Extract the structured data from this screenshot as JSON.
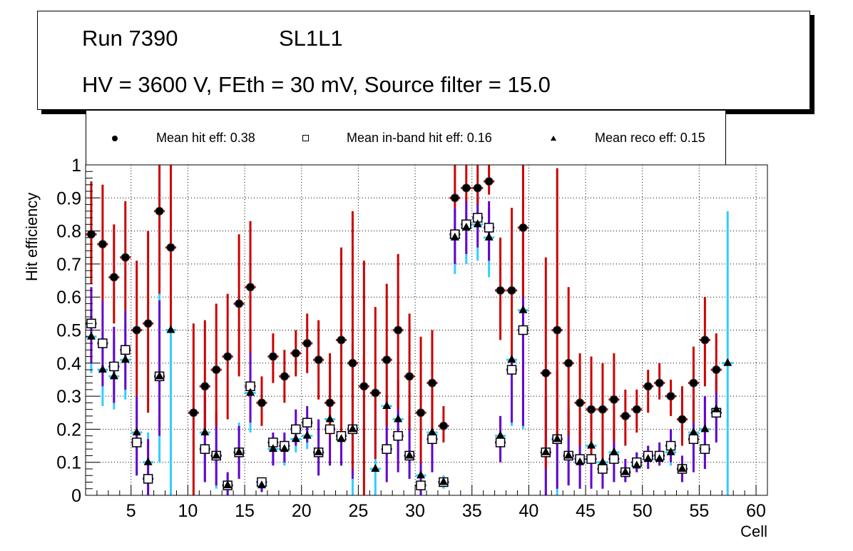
{
  "title": {
    "run": "Run 7390",
    "layer": "SL1L1",
    "conditions": "HV = 3600 V, FEth = 30 mV, Source filter = 15.0"
  },
  "legend": {
    "hit": "Mean hit  eff: 0.38",
    "inband": "Mean in-band hit eff: 0.16",
    "reco": "Mean reco eff: 0.15"
  },
  "colors": {
    "hit_error": "#cc0000",
    "inband_error": "#6600cc",
    "reco_error": "#33ccff",
    "marker": "#000000",
    "grid": "#000000"
  },
  "chart_data": {
    "type": "scatter",
    "title": "Run 7390 SL1L1 — HV = 3600 V, FEth = 30 mV, Source filter = 15.0",
    "xlabel": "Cell",
    "ylabel": "Hit efficiency",
    "xlim": [
      1,
      61
    ],
    "ylim": [
      0,
      1
    ],
    "x_ticks": [
      5,
      10,
      15,
      20,
      25,
      30,
      35,
      40,
      45,
      50,
      55,
      60
    ],
    "y_ticks": [
      "0",
      "0.1",
      "0.2",
      "0.3",
      "0.4",
      "0.5",
      "0.6",
      "0.7",
      "0.8",
      "0.9",
      "1"
    ],
    "grid": true,
    "legend_position": "top",
    "series": [
      {
        "name": "Mean hit  eff: 0.38",
        "marker": "circle",
        "points": [
          {
            "cell": 1,
            "y": 0.79,
            "lo": 0.64,
            "hi": 0.95
          },
          {
            "cell": 2,
            "y": 0.76,
            "lo": 0.59,
            "hi": 0.94
          },
          {
            "cell": 3,
            "y": 0.66,
            "lo": 0.52,
            "hi": 0.82
          },
          {
            "cell": 4,
            "y": 0.72,
            "lo": 0.56,
            "hi": 0.89
          },
          {
            "cell": 5,
            "y": 0.5,
            "lo": 0.3,
            "hi": 0.71
          },
          {
            "cell": 6,
            "y": 0.52,
            "lo": 0.25,
            "hi": 0.8
          },
          {
            "cell": 7,
            "y": 0.86,
            "lo": 0.61,
            "hi": 1.0
          },
          {
            "cell": 8,
            "y": 0.75,
            "lo": 0.5,
            "hi": 1.0
          },
          {
            "cell": 10,
            "y": 0.25,
            "lo": 0.0,
            "hi": 0.52
          },
          {
            "cell": 11,
            "y": 0.33,
            "lo": 0.18,
            "hi": 0.53
          },
          {
            "cell": 12,
            "y": 0.38,
            "lo": 0.21,
            "hi": 0.58
          },
          {
            "cell": 13,
            "y": 0.42,
            "lo": 0.23,
            "hi": 0.61
          },
          {
            "cell": 14,
            "y": 0.58,
            "lo": 0.36,
            "hi": 0.79
          },
          {
            "cell": 15,
            "y": 0.63,
            "lo": 0.43,
            "hi": 0.83
          },
          {
            "cell": 16,
            "y": 0.28,
            "lo": 0.21,
            "hi": 0.36
          },
          {
            "cell": 17,
            "y": 0.42,
            "lo": 0.34,
            "hi": 0.49
          },
          {
            "cell": 18,
            "y": 0.36,
            "lo": 0.28,
            "hi": 0.44
          },
          {
            "cell": 19,
            "y": 0.43,
            "lo": 0.36,
            "hi": 0.5
          },
          {
            "cell": 20,
            "y": 0.46,
            "lo": 0.37,
            "hi": 0.55
          },
          {
            "cell": 21,
            "y": 0.41,
            "lo": 0.29,
            "hi": 0.53
          },
          {
            "cell": 22,
            "y": 0.28,
            "lo": 0.18,
            "hi": 0.43
          },
          {
            "cell": 23,
            "y": 0.47,
            "lo": 0.17,
            "hi": 0.75
          },
          {
            "cell": 24,
            "y": 0.4,
            "lo": 0.08,
            "hi": 0.86
          },
          {
            "cell": 25,
            "y": 0.33,
            "lo": 0.0,
            "hi": 0.71
          },
          {
            "cell": 26,
            "y": 0.31,
            "lo": 0.11,
            "hi": 0.57
          },
          {
            "cell": 27,
            "y": 0.41,
            "lo": 0.21,
            "hi": 0.64
          },
          {
            "cell": 28,
            "y": 0.5,
            "lo": 0.26,
            "hi": 0.73
          },
          {
            "cell": 29,
            "y": 0.36,
            "lo": 0.2,
            "hi": 0.55
          },
          {
            "cell": 30,
            "y": 0.25,
            "lo": 0.1,
            "hi": 0.48
          },
          {
            "cell": 31,
            "y": 0.34,
            "lo": 0.2,
            "hi": 0.5
          },
          {
            "cell": 32,
            "y": 0.21,
            "lo": 0.16,
            "hi": 0.27
          },
          {
            "cell": 33,
            "y": 0.9,
            "lo": 0.87,
            "hi": 1.0
          },
          {
            "cell": 34,
            "y": 0.93,
            "lo": 0.89,
            "hi": 1.0
          },
          {
            "cell": 35,
            "y": 0.93,
            "lo": 0.88,
            "hi": 1.0
          },
          {
            "cell": 36,
            "y": 0.95,
            "lo": 0.91,
            "hi": 1.0
          },
          {
            "cell": 37,
            "y": 0.62,
            "lo": 0.47,
            "hi": 0.78
          },
          {
            "cell": 38,
            "y": 0.62,
            "lo": 0.42,
            "hi": 0.87
          },
          {
            "cell": 39,
            "y": 0.81,
            "lo": 0.6,
            "hi": 1.0
          },
          {
            "cell": 41,
            "y": 0.37,
            "lo": 0.08,
            "hi": 0.72
          },
          {
            "cell": 42,
            "y": 0.5,
            "lo": 0.16,
            "hi": 0.99
          },
          {
            "cell": 43,
            "y": 0.4,
            "lo": 0.18,
            "hi": 0.63
          },
          {
            "cell": 44,
            "y": 0.28,
            "lo": 0.15,
            "hi": 0.43
          },
          {
            "cell": 45,
            "y": 0.26,
            "lo": 0.1,
            "hi": 0.42
          },
          {
            "cell": 46,
            "y": 0.26,
            "lo": 0.11,
            "hi": 0.4
          },
          {
            "cell": 47,
            "y": 0.29,
            "lo": 0.16,
            "hi": 0.43
          },
          {
            "cell": 48,
            "y": 0.24,
            "lo": 0.15,
            "hi": 0.32
          },
          {
            "cell": 49,
            "y": 0.26,
            "lo": 0.19,
            "hi": 0.32
          },
          {
            "cell": 50,
            "y": 0.33,
            "lo": 0.25,
            "hi": 0.38
          },
          {
            "cell": 51,
            "y": 0.34,
            "lo": 0.29,
            "hi": 0.4
          },
          {
            "cell": 52,
            "y": 0.3,
            "lo": 0.24,
            "hi": 0.35
          },
          {
            "cell": 53,
            "y": 0.23,
            "lo": 0.15,
            "hi": 0.33
          },
          {
            "cell": 54,
            "y": 0.34,
            "lo": 0.22,
            "hi": 0.45
          },
          {
            "cell": 55,
            "y": 0.47,
            "lo": 0.33,
            "hi": 0.6
          },
          {
            "cell": 56,
            "y": 0.38,
            "lo": 0.31,
            "hi": 0.49
          }
        ]
      },
      {
        "name": "Mean in-band hit eff: 0.16",
        "marker": "open-square",
        "points": [
          {
            "cell": 1,
            "y": 0.52,
            "lo": 0.4,
            "hi": 0.63
          },
          {
            "cell": 2,
            "y": 0.46,
            "lo": 0.33,
            "hi": 0.59
          },
          {
            "cell": 3,
            "y": 0.39,
            "lo": 0.28,
            "hi": 0.51
          },
          {
            "cell": 4,
            "y": 0.44,
            "lo": 0.32,
            "hi": 0.56
          },
          {
            "cell": 5,
            "y": 0.16,
            "lo": 0.06,
            "hi": 0.3
          },
          {
            "cell": 6,
            "y": 0.05,
            "lo": 0.0,
            "hi": 0.17
          },
          {
            "cell": 7,
            "y": 0.36,
            "lo": 0.18,
            "hi": 0.59
          },
          {
            "cell": 11,
            "y": 0.14,
            "lo": 0.04,
            "hi": 0.3
          },
          {
            "cell": 12,
            "y": 0.12,
            "lo": 0.03,
            "hi": 0.25
          },
          {
            "cell": 13,
            "y": 0.03,
            "lo": 0.0,
            "hi": 0.07
          },
          {
            "cell": 14,
            "y": 0.13,
            "lo": 0.05,
            "hi": 0.21
          },
          {
            "cell": 15,
            "y": 0.33,
            "lo": 0.22,
            "hi": 0.45
          },
          {
            "cell": 16,
            "y": 0.04,
            "lo": 0.01,
            "hi": 0.05
          },
          {
            "cell": 17,
            "y": 0.16,
            "lo": 0.09,
            "hi": 0.19
          },
          {
            "cell": 18,
            "y": 0.15,
            "lo": 0.1,
            "hi": 0.19
          },
          {
            "cell": 19,
            "y": 0.2,
            "lo": 0.15,
            "hi": 0.26
          },
          {
            "cell": 20,
            "y": 0.22,
            "lo": 0.16,
            "hi": 0.27
          },
          {
            "cell": 21,
            "y": 0.13,
            "lo": 0.06,
            "hi": 0.23
          },
          {
            "cell": 22,
            "y": 0.2,
            "lo": 0.09,
            "hi": 0.36
          },
          {
            "cell": 23,
            "y": 0.18,
            "lo": 0.09,
            "hi": 0.3
          },
          {
            "cell": 24,
            "y": 0.2,
            "lo": 0.05,
            "hi": 0.46
          },
          {
            "cell": 27,
            "y": 0.14,
            "lo": 0.04,
            "hi": 0.3
          },
          {
            "cell": 28,
            "y": 0.18,
            "lo": 0.07,
            "hi": 0.35
          },
          {
            "cell": 29,
            "y": 0.12,
            "lo": 0.05,
            "hi": 0.24
          },
          {
            "cell": 30,
            "y": 0.03,
            "lo": 0.0,
            "hi": 0.11
          },
          {
            "cell": 31,
            "y": 0.17,
            "lo": 0.07,
            "hi": 0.3
          },
          {
            "cell": 32,
            "y": 0.04,
            "lo": 0.03,
            "hi": 0.05
          },
          {
            "cell": 33,
            "y": 0.79,
            "lo": 0.7,
            "hi": 0.87
          },
          {
            "cell": 34,
            "y": 0.82,
            "lo": 0.73,
            "hi": 0.89
          },
          {
            "cell": 35,
            "y": 0.84,
            "lo": 0.75,
            "hi": 0.93
          },
          {
            "cell": 36,
            "y": 0.81,
            "lo": 0.71,
            "hi": 0.89
          },
          {
            "cell": 37,
            "y": 0.16,
            "lo": 0.1,
            "hi": 0.24
          },
          {
            "cell": 38,
            "y": 0.38,
            "lo": 0.22,
            "hi": 0.57
          },
          {
            "cell": 39,
            "y": 0.5,
            "lo": 0.21,
            "hi": 0.82
          },
          {
            "cell": 41,
            "y": 0.13,
            "lo": 0.0,
            "hi": 0.3
          },
          {
            "cell": 42,
            "y": 0.17,
            "lo": 0.02,
            "hi": 0.38
          },
          {
            "cell": 43,
            "y": 0.12,
            "lo": 0.03,
            "hi": 0.26
          },
          {
            "cell": 44,
            "y": 0.11,
            "lo": 0.02,
            "hi": 0.21
          },
          {
            "cell": 45,
            "y": 0.11,
            "lo": 0.02,
            "hi": 0.24
          },
          {
            "cell": 46,
            "y": 0.08,
            "lo": 0.02,
            "hi": 0.18
          },
          {
            "cell": 47,
            "y": 0.11,
            "lo": 0.04,
            "hi": 0.2
          },
          {
            "cell": 48,
            "y": 0.07,
            "lo": 0.04,
            "hi": 0.11
          },
          {
            "cell": 49,
            "y": 0.1,
            "lo": 0.07,
            "hi": 0.13
          },
          {
            "cell": 50,
            "y": 0.12,
            "lo": 0.08,
            "hi": 0.15
          },
          {
            "cell": 51,
            "y": 0.12,
            "lo": 0.09,
            "hi": 0.16
          },
          {
            "cell": 52,
            "y": 0.15,
            "lo": 0.1,
            "hi": 0.2
          },
          {
            "cell": 53,
            "y": 0.08,
            "lo": 0.04,
            "hi": 0.12
          },
          {
            "cell": 54,
            "y": 0.17,
            "lo": 0.07,
            "hi": 0.29
          },
          {
            "cell": 55,
            "y": 0.14,
            "lo": 0.08,
            "hi": 0.3
          },
          {
            "cell": 56,
            "y": 0.25,
            "lo": 0.16,
            "hi": 0.35
          }
        ]
      },
      {
        "name": "Mean reco eff: 0.15",
        "marker": "triangle",
        "points": [
          {
            "cell": 1,
            "y": 0.48,
            "lo": 0.37,
            "hi": 0.58
          },
          {
            "cell": 2,
            "y": 0.38,
            "lo": 0.27,
            "hi": 0.49
          },
          {
            "cell": 3,
            "y": 0.36,
            "lo": 0.26,
            "hi": 0.47
          },
          {
            "cell": 4,
            "y": 0.41,
            "lo": 0.29,
            "hi": 0.52
          },
          {
            "cell": 5,
            "y": 0.19,
            "lo": 0.06,
            "hi": 0.3
          },
          {
            "cell": 6,
            "y": 0.1,
            "lo": 0.0,
            "hi": 0.19
          },
          {
            "cell": 7,
            "y": 0.36,
            "lo": 0.1,
            "hi": 0.61
          },
          {
            "cell": 8,
            "y": 0.5,
            "lo": 0.0,
            "hi": 1.0
          },
          {
            "cell": 11,
            "y": 0.19,
            "lo": 0.04,
            "hi": 0.33
          },
          {
            "cell": 12,
            "y": 0.12,
            "lo": 0.02,
            "hi": 0.26
          },
          {
            "cell": 13,
            "y": 0.03,
            "lo": 0.0,
            "hi": 0.07
          },
          {
            "cell": 14,
            "y": 0.13,
            "lo": 0.05,
            "hi": 0.22
          },
          {
            "cell": 15,
            "y": 0.31,
            "lo": 0.19,
            "hi": 0.43
          },
          {
            "cell": 16,
            "y": 0.03,
            "lo": 0.01,
            "hi": 0.05
          },
          {
            "cell": 17,
            "y": 0.14,
            "lo": 0.1,
            "hi": 0.18
          },
          {
            "cell": 18,
            "y": 0.14,
            "lo": 0.09,
            "hi": 0.18
          },
          {
            "cell": 19,
            "y": 0.17,
            "lo": 0.13,
            "hi": 0.21
          },
          {
            "cell": 20,
            "y": 0.18,
            "lo": 0.14,
            "hi": 0.23
          },
          {
            "cell": 21,
            "y": 0.13,
            "lo": 0.06,
            "hi": 0.22
          },
          {
            "cell": 22,
            "y": 0.23,
            "lo": 0.12,
            "hi": 0.37
          },
          {
            "cell": 23,
            "y": 0.17,
            "lo": 0.09,
            "hi": 0.28
          },
          {
            "cell": 24,
            "y": 0.2,
            "lo": 0.0,
            "hi": 0.46
          },
          {
            "cell": 26,
            "y": 0.08,
            "lo": 0.0,
            "hi": 0.3
          },
          {
            "cell": 27,
            "y": 0.27,
            "lo": 0.12,
            "hi": 0.44
          },
          {
            "cell": 28,
            "y": 0.23,
            "lo": 0.11,
            "hi": 0.39
          },
          {
            "cell": 29,
            "y": 0.12,
            "lo": 0.05,
            "hi": 0.24
          },
          {
            "cell": 30,
            "y": 0.06,
            "lo": 0.0,
            "hi": 0.13
          },
          {
            "cell": 31,
            "y": 0.19,
            "lo": 0.1,
            "hi": 0.3
          },
          {
            "cell": 32,
            "y": 0.04,
            "lo": 0.02,
            "hi": 0.06
          },
          {
            "cell": 33,
            "y": 0.78,
            "lo": 0.67,
            "hi": 0.87
          },
          {
            "cell": 34,
            "y": 0.81,
            "lo": 0.7,
            "hi": 0.9
          },
          {
            "cell": 35,
            "y": 0.82,
            "lo": 0.71,
            "hi": 0.91
          },
          {
            "cell": 36,
            "y": 0.78,
            "lo": 0.66,
            "hi": 0.87
          },
          {
            "cell": 37,
            "y": 0.18,
            "lo": 0.11,
            "hi": 0.24
          },
          {
            "cell": 38,
            "y": 0.41,
            "lo": 0.21,
            "hi": 0.61
          },
          {
            "cell": 39,
            "y": 0.56,
            "lo": 0.2,
            "hi": 0.88
          },
          {
            "cell": 41,
            "y": 0.13,
            "lo": 0.0,
            "hi": 0.29
          },
          {
            "cell": 42,
            "y": 0.17,
            "lo": 0.0,
            "hi": 0.35
          },
          {
            "cell": 43,
            "y": 0.12,
            "lo": 0.03,
            "hi": 0.21
          },
          {
            "cell": 44,
            "y": 0.1,
            "lo": 0.02,
            "hi": 0.19
          },
          {
            "cell": 45,
            "y": 0.15,
            "lo": 0.03,
            "hi": 0.24
          },
          {
            "cell": 46,
            "y": 0.1,
            "lo": 0.02,
            "hi": 0.19
          },
          {
            "cell": 47,
            "y": 0.13,
            "lo": 0.05,
            "hi": 0.21
          },
          {
            "cell": 48,
            "y": 0.07,
            "lo": 0.04,
            "hi": 0.1
          },
          {
            "cell": 49,
            "y": 0.09,
            "lo": 0.07,
            "hi": 0.13
          },
          {
            "cell": 50,
            "y": 0.11,
            "lo": 0.08,
            "hi": 0.15
          },
          {
            "cell": 51,
            "y": 0.11,
            "lo": 0.09,
            "hi": 0.15
          },
          {
            "cell": 52,
            "y": 0.13,
            "lo": 0.09,
            "hi": 0.18
          },
          {
            "cell": 53,
            "y": 0.08,
            "lo": 0.05,
            "hi": 0.12
          },
          {
            "cell": 54,
            "y": 0.19,
            "lo": 0.09,
            "hi": 0.29
          },
          {
            "cell": 55,
            "y": 0.2,
            "lo": 0.08,
            "hi": 0.3
          },
          {
            "cell": 56,
            "y": 0.26,
            "lo": 0.16,
            "hi": 0.36
          },
          {
            "cell": 57,
            "y": 0.4,
            "lo": 0.0,
            "hi": 0.86
          }
        ]
      }
    ]
  }
}
